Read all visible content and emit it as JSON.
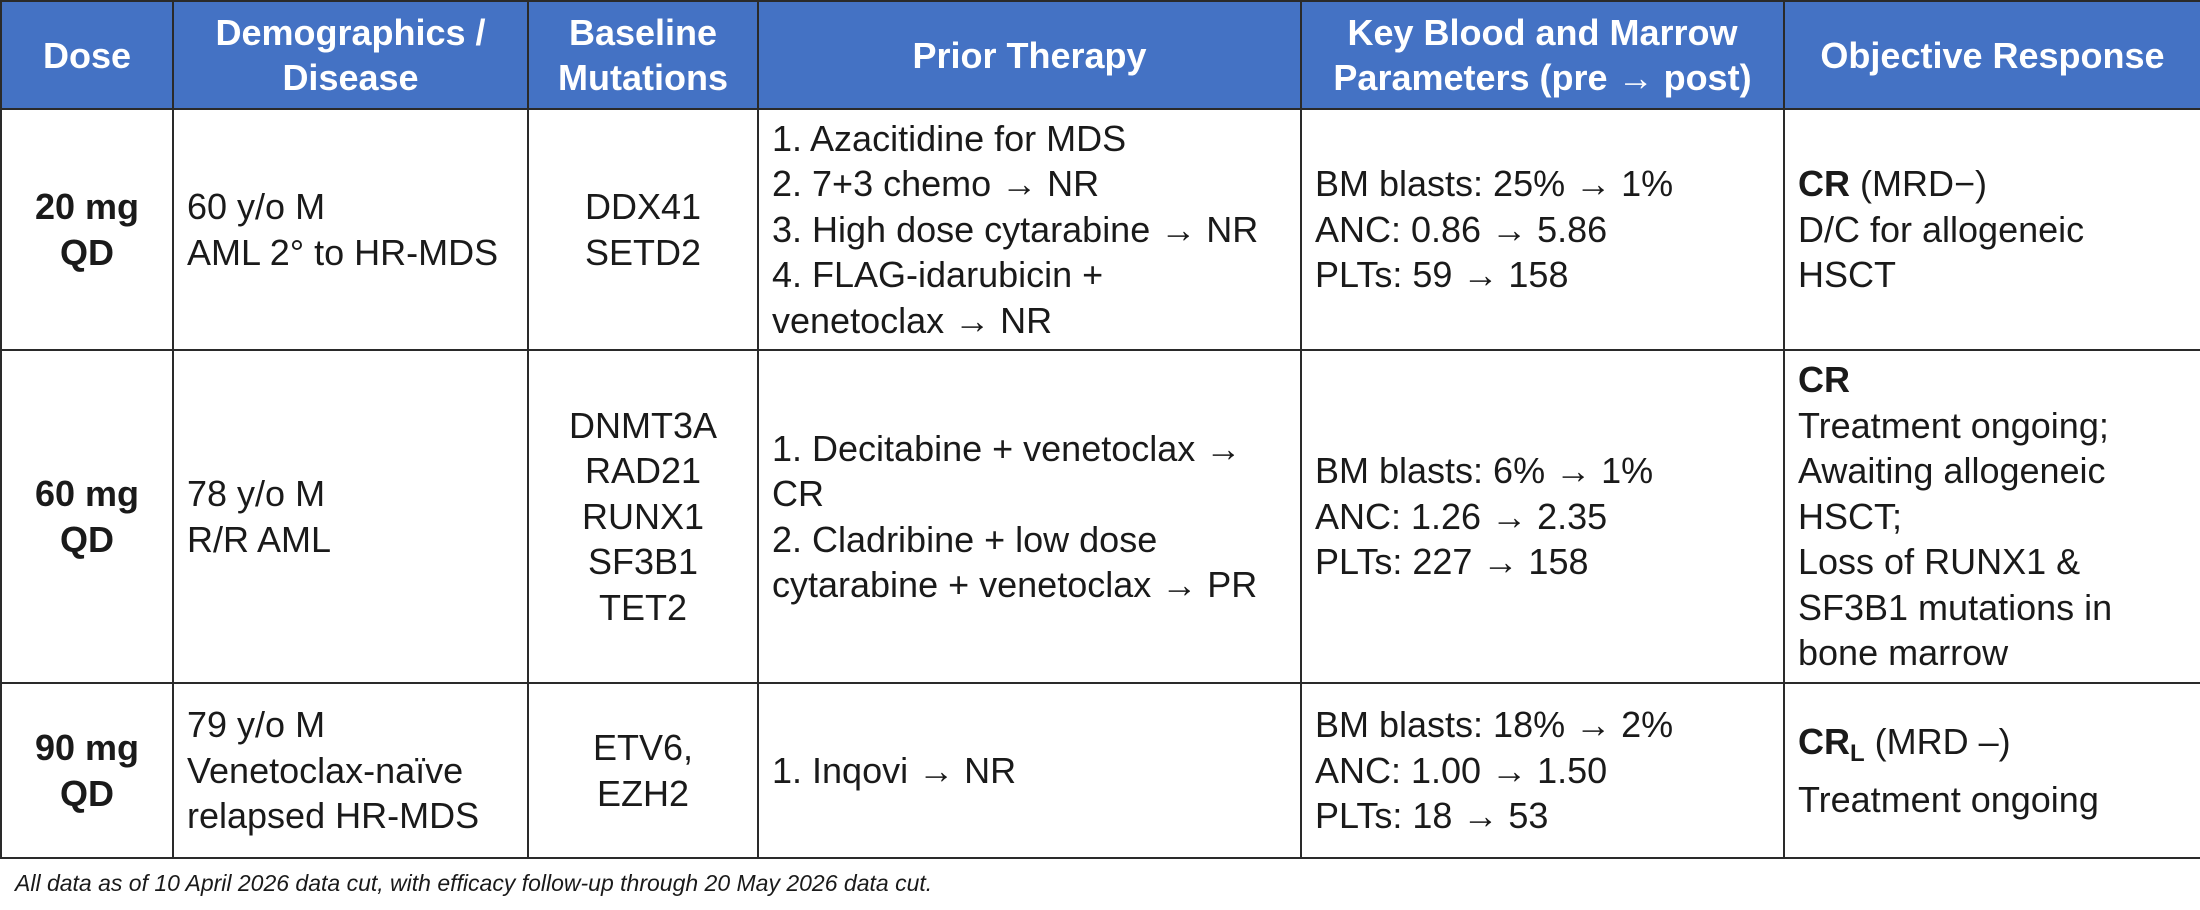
{
  "table": {
    "headers": [
      "Dose",
      "Demographics /\nDisease",
      "Baseline\nMutations",
      "Prior Therapy",
      "Key Blood and Marrow\nParameters (pre → post)",
      "Objective Response"
    ],
    "rows": [
      {
        "dose": [
          "20 mg",
          "QD"
        ],
        "demographics": [
          "60 y/o M",
          "AML 2° to HR-MDS"
        ],
        "mutations": [
          "DDX41",
          "SETD2"
        ],
        "prior_therapy": [
          "1. Azacitidine for MDS",
          "2. 7+3 chemo → NR",
          "3. High dose cytarabine → NR",
          "4. FLAG-idarubicin +",
          "venetoclax → NR"
        ],
        "parameters": [
          "BM blasts: 25% → 1%",
          "ANC: 0.86 → 5.86",
          "PLTs: 59 → 158"
        ],
        "response": {
          "bold": "CR",
          "subscript": "",
          "suffix": " (MRD−)",
          "lines": [
            "D/C for allogeneic",
            "HSCT"
          ]
        }
      },
      {
        "dose": [
          "60 mg",
          "QD"
        ],
        "demographics": [
          "78 y/o M",
          "R/R AML"
        ],
        "mutations": [
          "DNMT3A",
          "RAD21",
          "RUNX1",
          "SF3B1",
          "TET2"
        ],
        "prior_therapy": [
          "1. Decitabine + venetoclax →",
          "CR",
          "2. Cladribine + low dose",
          "cytarabine + venetoclax → PR"
        ],
        "parameters": [
          "BM blasts: 6% → 1%",
          "ANC: 1.26 → 2.35",
          "PLTs: 227 → 158"
        ],
        "response": {
          "bold": "CR",
          "subscript": "",
          "suffix": "",
          "lines": [
            "Treatment ongoing;",
            "Awaiting allogeneic",
            "HSCT;",
            "Loss of RUNX1 &",
            "SF3B1 mutations in",
            "bone marrow"
          ]
        }
      },
      {
        "dose": [
          "90 mg",
          "QD"
        ],
        "demographics": [
          "79 y/o M",
          "Venetoclax-naïve",
          "relapsed HR-MDS"
        ],
        "mutations": [
          "ETV6,",
          "EZH2"
        ],
        "prior_therapy": [
          "1. Inqovi → NR"
        ],
        "parameters": [
          "BM blasts: 18% → 2%",
          "ANC: 1.00 → 1.50",
          "PLTs: 18 → 53"
        ],
        "response": {
          "bold": "CR",
          "subscript": "L",
          "suffix": " (MRD –)",
          "lines": [
            "Treatment ongoing"
          ]
        }
      }
    ]
  },
  "footnote": "All data as of 10 April 2026 data cut, with efficacy follow-up through 20 May 2026 data cut."
}
